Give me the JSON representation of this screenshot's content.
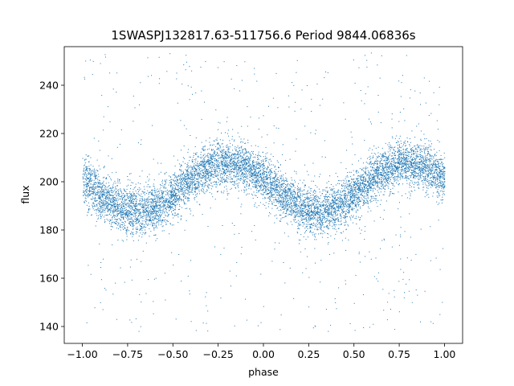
{
  "chart_data": {
    "type": "scatter",
    "title": "1SWASPJ132817.63-511756.6 Period 9844.06836s",
    "xlabel": "phase",
    "ylabel": "flux",
    "xlim": [
      -1.1,
      1.1
    ],
    "ylim": [
      133,
      256
    ],
    "xticks": [
      -1.0,
      -0.75,
      -0.5,
      -0.25,
      0.0,
      0.25,
      0.5,
      0.75,
      1.0
    ],
    "xtick_labels": [
      "−1.00",
      "−0.75",
      "−0.50",
      "−0.25",
      "0.00",
      "0.25",
      "0.50",
      "0.75",
      "1.00"
    ],
    "yticks": [
      140,
      160,
      180,
      200,
      220,
      240
    ],
    "ytick_labels": [
      "140",
      "160",
      "180",
      "200",
      "220",
      "240"
    ],
    "grid": false,
    "point_color": "#1f77b4",
    "model": {
      "description": "folded light curve: dense band following a sinusoid",
      "x_range": [
        -1.0,
        1.0
      ],
      "mean_flux": 198,
      "amplitude": 10,
      "peak_phases": [
        -0.2,
        0.8
      ],
      "trough_phases": [
        -0.6,
        0.35
      ],
      "band_scatter": 8,
      "outlier_range": [
        138,
        254
      ]
    }
  }
}
